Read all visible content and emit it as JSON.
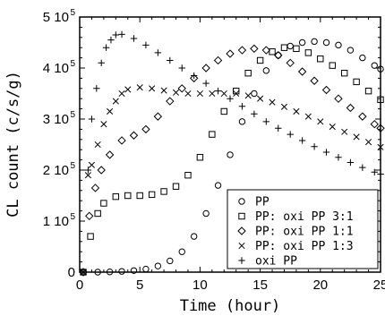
{
  "chart_data": {
    "type": "scatter",
    "xlabel": "Time (hour)",
    "ylabel": "CL count (c/s/g)",
    "xlim": [
      0,
      25
    ],
    "ylim": [
      0,
      500000
    ],
    "x_ticks": [
      "0",
      "5",
      "10",
      "15",
      "20",
      "25"
    ],
    "y_ticks": [
      {
        "mantissa": "0",
        "exp": ""
      },
      {
        "mantissa": "1 10",
        "exp": "5"
      },
      {
        "mantissa": "2 10",
        "exp": "5"
      },
      {
        "mantissa": "3 10",
        "exp": "5"
      },
      {
        "mantissa": "4 10",
        "exp": "5"
      },
      {
        "mantissa": "5 10",
        "exp": "5"
      }
    ],
    "grid": false,
    "legend_position": "bottom-right",
    "series": [
      {
        "name": "PP",
        "marker": "circle",
        "points": [
          [
            0.3,
            0
          ],
          [
            1.5,
            0
          ],
          [
            2.5,
            500
          ],
          [
            3.5,
            1500
          ],
          [
            4.5,
            3000
          ],
          [
            5.5,
            6000
          ],
          [
            6.5,
            12000
          ],
          [
            7.5,
            22000
          ],
          [
            8.5,
            40000
          ],
          [
            9.5,
            70000
          ],
          [
            10.5,
            115000
          ],
          [
            11.5,
            170000
          ],
          [
            12.5,
            230000
          ],
          [
            13.5,
            295000
          ],
          [
            14.5,
            350000
          ],
          [
            15.5,
            395000
          ],
          [
            16.5,
            425000
          ],
          [
            17.5,
            443000
          ],
          [
            18.5,
            450000
          ],
          [
            19.5,
            452000
          ],
          [
            20.5,
            450000
          ],
          [
            21.5,
            445000
          ],
          [
            22.5,
            435000
          ],
          [
            23.5,
            420000
          ],
          [
            24.5,
            405000
          ],
          [
            25,
            398000
          ]
        ]
      },
      {
        "name": "PP: oxi PP 3:1",
        "marker": "square",
        "points": [
          [
            0.3,
            0
          ],
          [
            0.9,
            70000
          ],
          [
            1.5,
            115000
          ],
          [
            2.0,
            135000
          ],
          [
            3.0,
            148000
          ],
          [
            4.0,
            150000
          ],
          [
            5.0,
            150000
          ],
          [
            6.0,
            152000
          ],
          [
            7.0,
            158000
          ],
          [
            8.0,
            168000
          ],
          [
            9.0,
            190000
          ],
          [
            10.0,
            225000
          ],
          [
            11.0,
            270000
          ],
          [
            12.0,
            315000
          ],
          [
            13.0,
            355000
          ],
          [
            14.0,
            390000
          ],
          [
            15.0,
            415000
          ],
          [
            16.0,
            432000
          ],
          [
            17.0,
            440000
          ],
          [
            18.0,
            438000
          ],
          [
            19.0,
            430000
          ],
          [
            20.0,
            418000
          ],
          [
            21.0,
            405000
          ],
          [
            22.0,
            390000
          ],
          [
            23.0,
            373000
          ],
          [
            24.0,
            355000
          ],
          [
            25.0,
            338000
          ]
        ]
      },
      {
        "name": "PP: oxi PP 1:1",
        "marker": "diamond",
        "points": [
          [
            0.3,
            0
          ],
          [
            0.8,
            110000
          ],
          [
            1.3,
            165000
          ],
          [
            1.8,
            200000
          ],
          [
            2.5,
            230000
          ],
          [
            3.5,
            258000
          ],
          [
            4.5,
            268000
          ],
          [
            5.5,
            280000
          ],
          [
            6.5,
            305000
          ],
          [
            7.5,
            335000
          ],
          [
            8.5,
            360000
          ],
          [
            9.5,
            380000
          ],
          [
            10.5,
            400000
          ],
          [
            11.5,
            415000
          ],
          [
            12.5,
            428000
          ],
          [
            13.5,
            435000
          ],
          [
            14.5,
            438000
          ],
          [
            15.5,
            435000
          ],
          [
            16.5,
            425000
          ],
          [
            17.5,
            410000
          ],
          [
            18.5,
            393000
          ],
          [
            19.5,
            375000
          ],
          [
            20.5,
            357000
          ],
          [
            21.5,
            340000
          ],
          [
            22.5,
            322000
          ],
          [
            23.5,
            305000
          ],
          [
            24.5,
            290000
          ],
          [
            25.0,
            282000
          ]
        ]
      },
      {
        "name": "PP: oxi PP 1:3",
        "marker": "cross",
        "points": [
          [
            0.3,
            0
          ],
          [
            0.7,
            190000
          ],
          [
            1.0,
            210000
          ],
          [
            1.5,
            250000
          ],
          [
            2.0,
            290000
          ],
          [
            2.5,
            315000
          ],
          [
            3.0,
            335000
          ],
          [
            3.5,
            350000
          ],
          [
            4.0,
            358000
          ],
          [
            5.0,
            362000
          ],
          [
            6.0,
            360000
          ],
          [
            7.0,
            356000
          ],
          [
            8.0,
            352000
          ],
          [
            9.0,
            350000
          ],
          [
            10.0,
            350000
          ],
          [
            11.0,
            350000
          ],
          [
            12.0,
            350000
          ],
          [
            13.0,
            350000
          ],
          [
            14.0,
            346000
          ],
          [
            15.0,
            340000
          ],
          [
            16.0,
            333000
          ],
          [
            17.0,
            324000
          ],
          [
            18.0,
            315000
          ],
          [
            19.0,
            305000
          ],
          [
            20.0,
            295000
          ],
          [
            21.0,
            285000
          ],
          [
            22.0,
            275000
          ],
          [
            23.0,
            265000
          ],
          [
            24.0,
            255000
          ],
          [
            25.0,
            245000
          ]
        ]
      },
      {
        "name": "oxi PP",
        "marker": "plus",
        "points": [
          [
            0.3,
            0
          ],
          [
            0.7,
            200000
          ],
          [
            1.0,
            300000
          ],
          [
            1.4,
            360000
          ],
          [
            1.8,
            410000
          ],
          [
            2.2,
            440000
          ],
          [
            2.6,
            455000
          ],
          [
            3.0,
            465000
          ],
          [
            3.5,
            466000
          ],
          [
            4.5,
            458000
          ],
          [
            5.5,
            445000
          ],
          [
            6.5,
            430000
          ],
          [
            7.5,
            415000
          ],
          [
            8.5,
            400000
          ],
          [
            9.5,
            385000
          ],
          [
            10.5,
            370000
          ],
          [
            11.5,
            355000
          ],
          [
            12.5,
            340000
          ],
          [
            13.5,
            325000
          ],
          [
            14.5,
            310000
          ],
          [
            15.5,
            295000
          ],
          [
            16.5,
            282000
          ],
          [
            17.5,
            270000
          ],
          [
            18.5,
            258000
          ],
          [
            19.5,
            246000
          ],
          [
            20.5,
            235000
          ],
          [
            21.5,
            225000
          ],
          [
            22.5,
            215000
          ],
          [
            23.5,
            205000
          ],
          [
            24.5,
            196000
          ],
          [
            25.0,
            192000
          ]
        ]
      }
    ]
  }
}
